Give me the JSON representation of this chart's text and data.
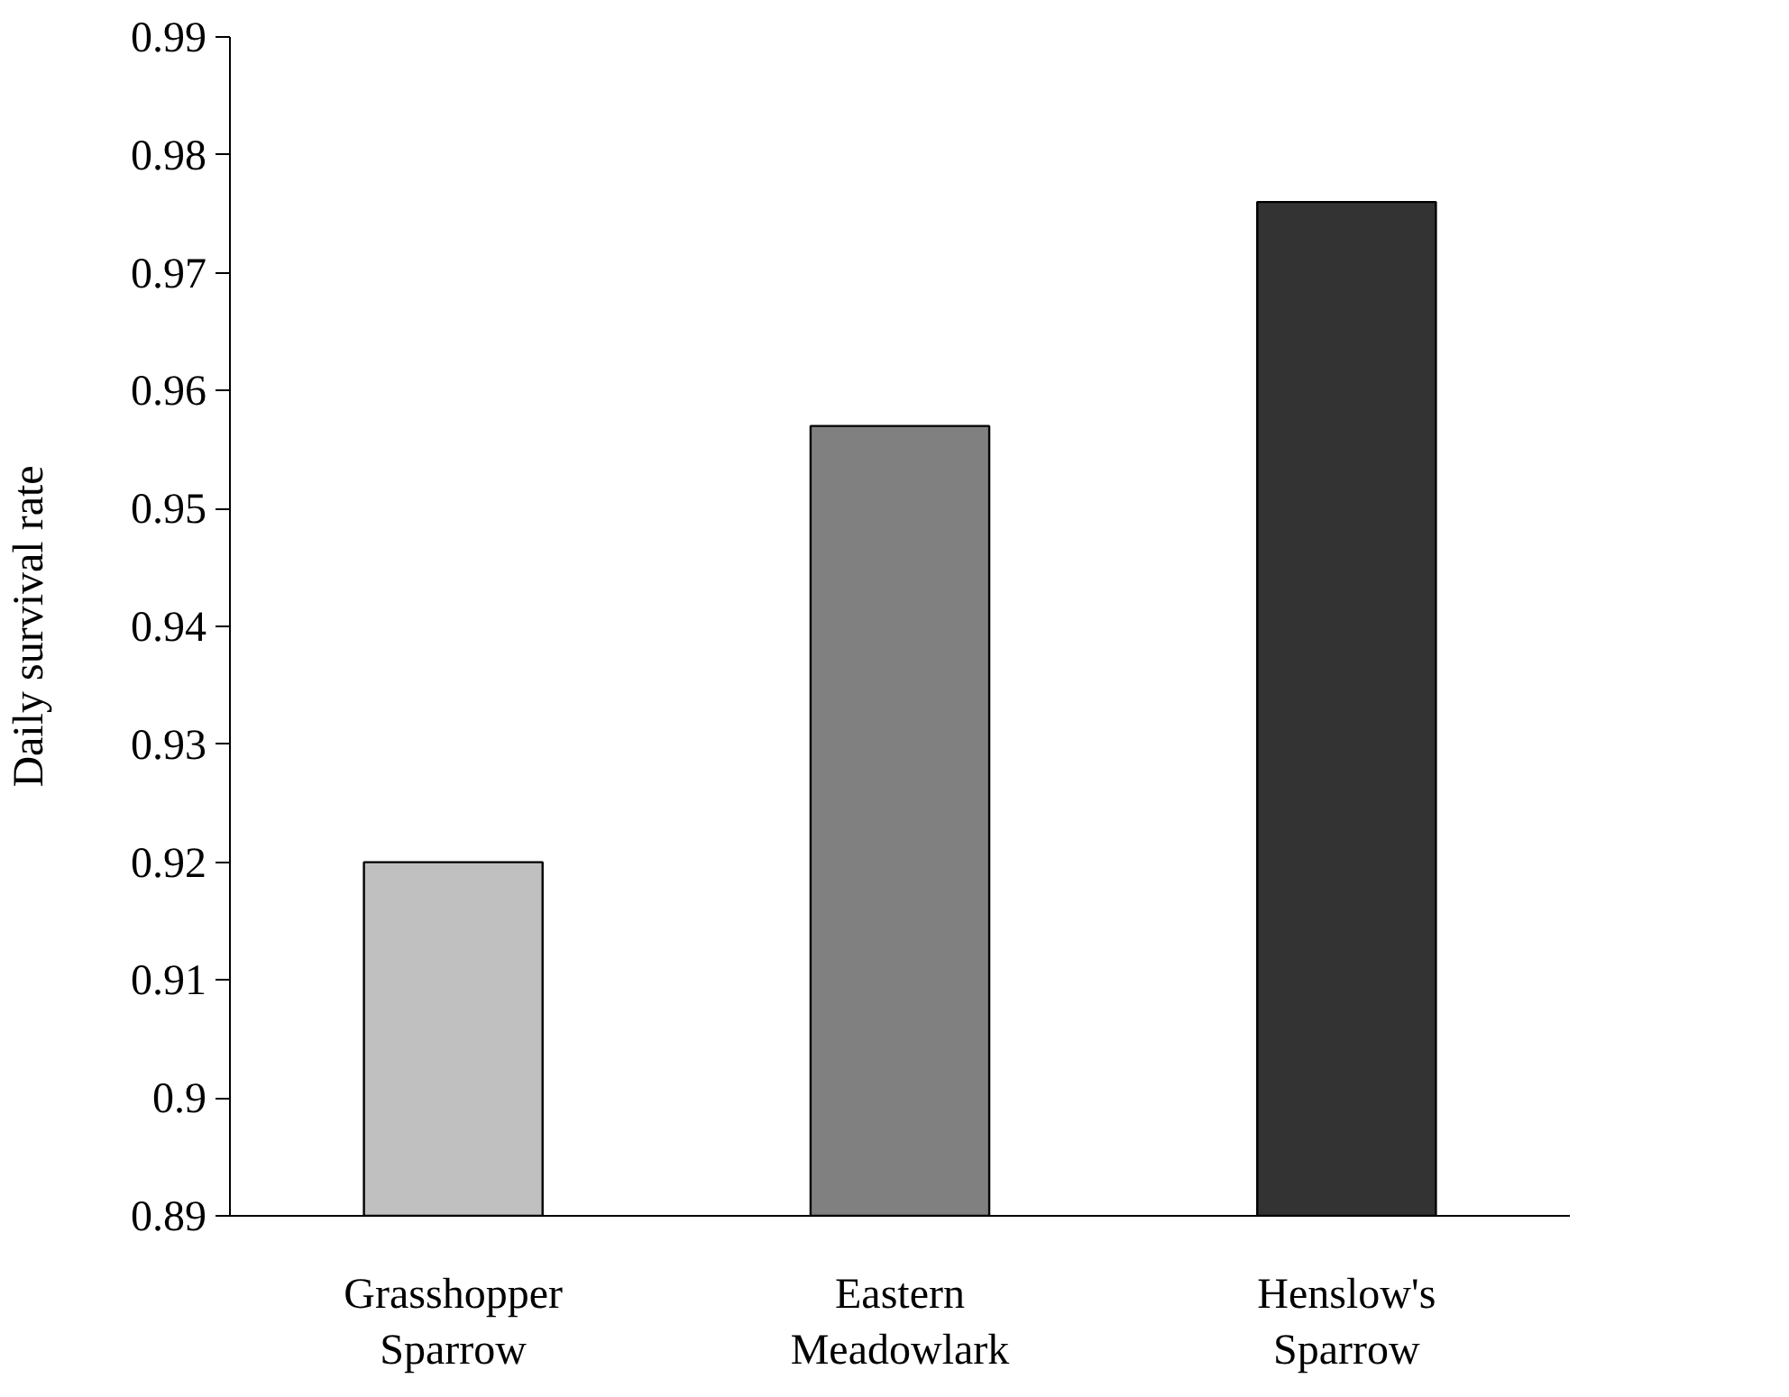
{
  "chart_data": {
    "type": "bar",
    "ylabel": "Daily survival rate",
    "categories": [
      "Grasshopper\nSparrow",
      "Eastern\nMeadowlark",
      "Henslow's\nSparrow"
    ],
    "values": [
      0.92,
      0.957,
      0.976
    ],
    "colors": [
      "#c0c0c0",
      "#808080",
      "#333333"
    ],
    "ylim": [
      0.89,
      0.99
    ],
    "yticks": [
      0.89,
      0.9,
      0.91,
      0.92,
      0.93,
      0.94,
      0.95,
      0.96,
      0.97,
      0.98,
      0.99
    ],
    "grid": false
  }
}
